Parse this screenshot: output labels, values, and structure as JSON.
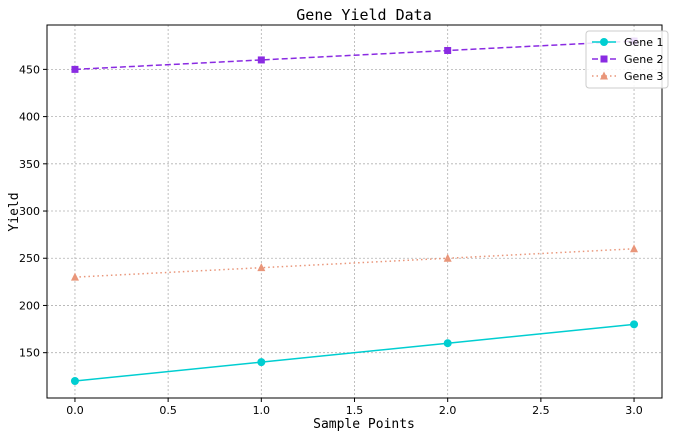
{
  "chart_data": {
    "type": "line",
    "title": "Gene Yield Data",
    "xlabel": "Sample Points",
    "ylabel": "Yield",
    "x": [
      0,
      1,
      2,
      3
    ],
    "xlim": [
      -0.15,
      3.15
    ],
    "ylim": [
      102,
      497
    ],
    "xticks": [
      0.0,
      0.5,
      1.0,
      1.5,
      2.0,
      2.5,
      3.0
    ],
    "xtick_labels": [
      "0.0",
      "0.5",
      "1.0",
      "1.5",
      "2.0",
      "2.5",
      "3.0"
    ],
    "yticks": [
      150,
      200,
      250,
      300,
      350,
      400,
      450
    ],
    "ytick_labels": [
      "150",
      "200",
      "250",
      "300",
      "350",
      "400",
      "450"
    ],
    "grid": true,
    "legend_position": "top-right",
    "series": [
      {
        "name": "Gene 1",
        "values": [
          120,
          140,
          160,
          180
        ],
        "color": "#00CED1",
        "linestyle": "solid",
        "marker": "circle"
      },
      {
        "name": "Gene 2",
        "values": [
          450,
          460,
          470,
          480
        ],
        "color": "#8A2BE2",
        "linestyle": "dashed",
        "marker": "square"
      },
      {
        "name": "Gene 3",
        "values": [
          230,
          240,
          250,
          260
        ],
        "color": "#E9967A",
        "linestyle": "dotted",
        "marker": "triangle"
      }
    ]
  }
}
